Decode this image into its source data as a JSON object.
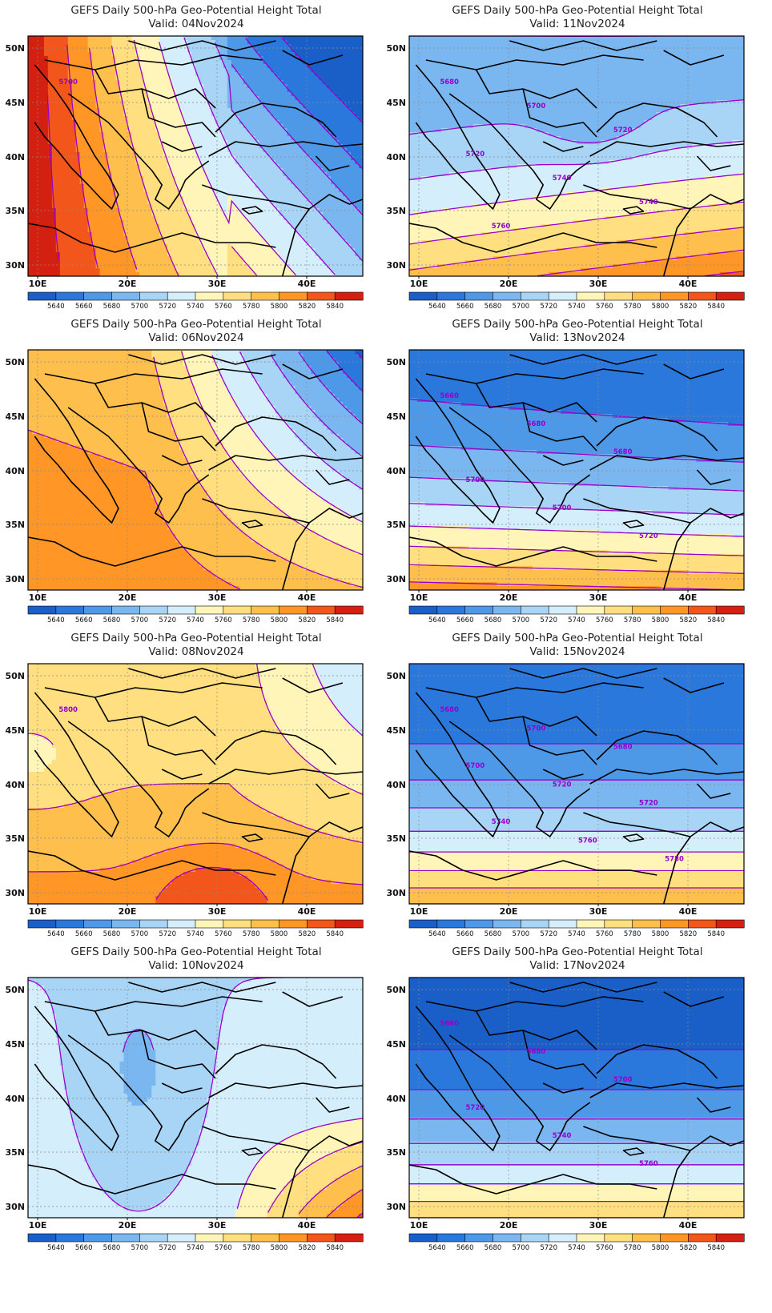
{
  "panels": [
    {
      "id": "p04",
      "title": "GEFS Daily 500-hPa Geo-Potential Height Total",
      "valid": "Valid: 04Nov2024",
      "contour_labels": [
        "5700"
      ]
    },
    {
      "id": "p11",
      "title": "GEFS Daily 500-hPa Geo-Potential Height Total",
      "valid": "Valid: 11Nov2024",
      "contour_labels": [
        "5680",
        "5700",
        "5720",
        "5720",
        "5740",
        "5740",
        "5760"
      ]
    },
    {
      "id": "p06",
      "title": "GEFS Daily 500-hPa Geo-Potential Height Total",
      "valid": "Valid: 06Nov2024",
      "contour_labels": []
    },
    {
      "id": "p13",
      "title": "GEFS Daily 500-hPa Geo-Potential Height Total",
      "valid": "Valid: 13Nov2024",
      "contour_labels": [
        "5660",
        "5680",
        "5680",
        "5700",
        "5700",
        "5720"
      ]
    },
    {
      "id": "p08",
      "title": "GEFS Daily 500-hPa Geo-Potential Height Total",
      "valid": "Valid: 08Nov2024",
      "contour_labels": [
        "5800"
      ]
    },
    {
      "id": "p15",
      "title": "GEFS Daily 500-hPa Geo-Potential Height Total",
      "valid": "Valid: 15Nov2024",
      "contour_labels": [
        "5680",
        "5700",
        "5680",
        "5700",
        "5720",
        "5720",
        "5740",
        "5760",
        "5780"
      ]
    },
    {
      "id": "p10",
      "title": "GEFS Daily 500-hPa Geo-Potential Height Total",
      "valid": "Valid: 10Nov2024",
      "contour_labels": []
    },
    {
      "id": "p17",
      "title": "GEFS Daily 500-hPa Geo-Potential Height Total",
      "valid": "Valid: 17Nov2024",
      "contour_labels": [
        "5660",
        "5680",
        "5700",
        "5720",
        "5740",
        "5760"
      ]
    }
  ],
  "map": {
    "x_ticks": [
      "10E",
      "20E",
      "30E",
      "40E"
    ],
    "y_ticks": [
      "50N",
      "45N",
      "40N",
      "35N",
      "30N"
    ],
    "units_note": ""
  },
  "colorbar": {
    "labels": [
      "5640",
      "5660",
      "5680",
      "5700",
      "5720",
      "5740",
      "5760",
      "5780",
      "5800",
      "5820",
      "5840"
    ],
    "colors": [
      "#1a5fc8",
      "#2a78dc",
      "#4e98e8",
      "#7ab6f0",
      "#a8d4f6",
      "#d4eefc",
      "#fff5b8",
      "#ffdf80",
      "#ffbf4c",
      "#ff9626",
      "#f2561a",
      "#d42010"
    ]
  },
  "contour_color": "#9900cc",
  "coast_color": "#000000"
}
